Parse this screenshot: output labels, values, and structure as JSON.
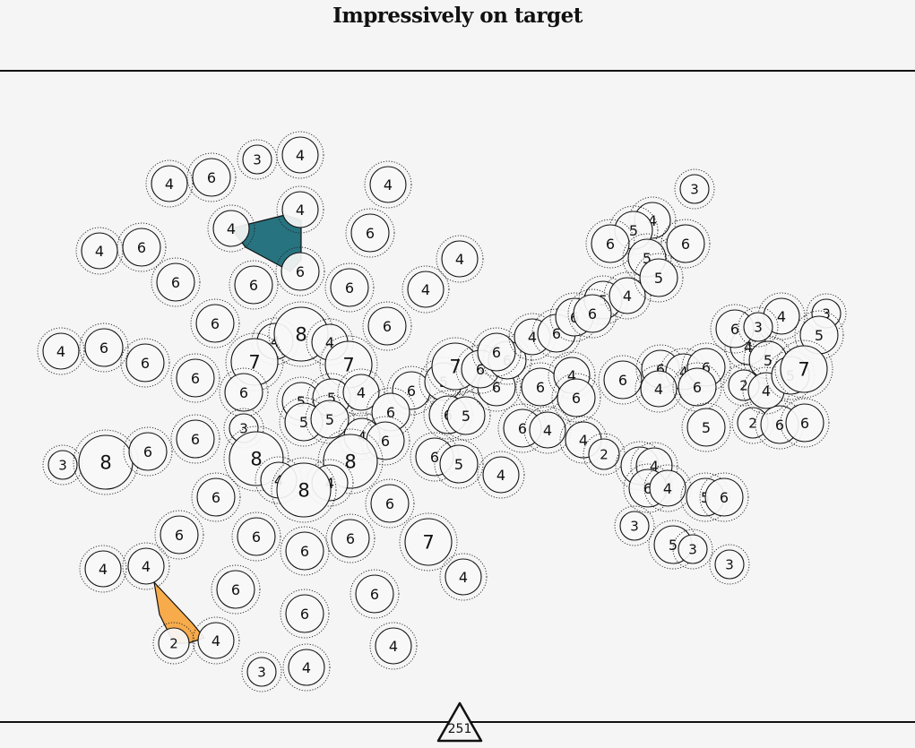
{
  "game": {
    "title": "Impressively on target",
    "score": "251"
  },
  "colors": {
    "background": "#f6f5f5",
    "ink": "#111111",
    "teal_shape": "#27737f",
    "orange_shape": "#f7ab4b"
  },
  "board": {
    "nodes": [
      {
        "v": "3"
      },
      {
        "v": "4"
      },
      {
        "v": "4"
      },
      {
        "v": "6"
      },
      {
        "v": "4"
      },
      {
        "v": "4"
      },
      {
        "v": "4"
      },
      {
        "v": "6"
      },
      {
        "v": "4"
      },
      {
        "v": "6"
      },
      {
        "v": "4"
      },
      {
        "v": "6"
      },
      {
        "v": "6"
      },
      {
        "v": "6"
      },
      {
        "v": "6"
      },
      {
        "v": "4"
      },
      {
        "v": "6"
      },
      {
        "v": "6"
      },
      {
        "v": "4"
      },
      {
        "v": "6"
      },
      {
        "v": "6"
      },
      {
        "v": "4"
      },
      {
        "v": "8"
      },
      {
        "v": "4"
      },
      {
        "v": "7"
      },
      {
        "v": "7"
      },
      {
        "v": "6"
      },
      {
        "v": "6"
      },
      {
        "v": "6"
      },
      {
        "v": "5"
      },
      {
        "v": "5"
      },
      {
        "v": "4"
      },
      {
        "v": "5"
      },
      {
        "v": "5"
      },
      {
        "v": "4"
      },
      {
        "v": "6"
      },
      {
        "v": "6"
      },
      {
        "v": "3"
      },
      {
        "v": "3"
      },
      {
        "v": "8"
      },
      {
        "v": "6"
      },
      {
        "v": "6"
      },
      {
        "v": "8"
      },
      {
        "v": "8"
      },
      {
        "v": "4"
      },
      {
        "v": "4"
      },
      {
        "v": "8"
      },
      {
        "v": "6"
      },
      {
        "v": "6"
      },
      {
        "v": "6"
      },
      {
        "v": "6"
      },
      {
        "v": "6"
      },
      {
        "v": "6"
      },
      {
        "v": "7"
      },
      {
        "v": "4"
      },
      {
        "v": "4"
      },
      {
        "v": "4"
      },
      {
        "v": "6"
      },
      {
        "v": "6"
      },
      {
        "v": "2"
      },
      {
        "v": "4"
      },
      {
        "v": "6"
      },
      {
        "v": "4"
      },
      {
        "v": "3"
      },
      {
        "v": "4"
      },
      {
        "v": "5"
      },
      {
        "v": "7"
      },
      {
        "v": "6"
      },
      {
        "v": "5"
      },
      {
        "v": "6"
      },
      {
        "v": "6"
      },
      {
        "v": "5"
      },
      {
        "v": "6"
      },
      {
        "v": "6"
      },
      {
        "v": "6"
      },
      {
        "v": "4"
      },
      {
        "v": "6"
      },
      {
        "v": "4"
      },
      {
        "v": "6"
      },
      {
        "v": "4"
      },
      {
        "v": "6"
      },
      {
        "v": "6"
      },
      {
        "v": "4"
      },
      {
        "v": "6"
      },
      {
        "v": "4"
      },
      {
        "v": "5"
      },
      {
        "v": "6"
      },
      {
        "v": "2"
      },
      {
        "v": "4"
      },
      {
        "v": "3"
      },
      {
        "v": "4"
      },
      {
        "v": "5"
      },
      {
        "v": "6"
      },
      {
        "v": "5"
      },
      {
        "v": "6"
      },
      {
        "v": "5"
      },
      {
        "v": "6"
      },
      {
        "v": "4"
      },
      {
        "v": "6"
      },
      {
        "v": "6"
      },
      {
        "v": "4"
      },
      {
        "v": "6"
      },
      {
        "v": "4"
      },
      {
        "v": "6"
      },
      {
        "v": "4"
      },
      {
        "v": "6"
      },
      {
        "v": "5"
      },
      {
        "v": "6"
      },
      {
        "v": "3"
      },
      {
        "v": "5"
      },
      {
        "v": "3"
      },
      {
        "v": "3"
      },
      {
        "v": "5"
      },
      {
        "v": "2"
      },
      {
        "v": "6"
      },
      {
        "v": "4"
      },
      {
        "v": "4"
      },
      {
        "v": "5"
      },
      {
        "v": "6"
      },
      {
        "v": "6"
      },
      {
        "v": "3"
      },
      {
        "v": "3"
      },
      {
        "v": "5"
      },
      {
        "v": "2"
      },
      {
        "v": "4"
      },
      {
        "v": "5"
      },
      {
        "v": "7"
      },
      {
        "v": "7"
      },
      {
        "v": "4"
      },
      {
        "v": "3"
      },
      {
        "v": "4"
      },
      {
        "v": "4"
      },
      {
        "v": "2"
      }
    ],
    "shapes": [
      {
        "name": "teal-triangle",
        "color": "#27737f"
      },
      {
        "name": "orange-triangle",
        "color": "#f7ab4b"
      }
    ]
  }
}
